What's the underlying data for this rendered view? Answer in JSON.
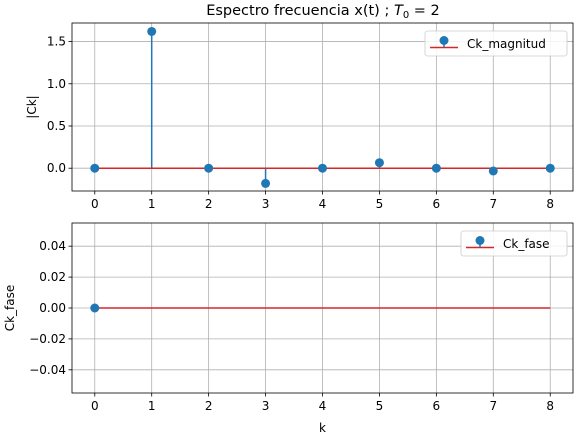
{
  "figure": {
    "title_main": "Espectro frecuencia x(t)  ; ",
    "title_math_symbol": "T",
    "title_math_sub": "0",
    "title_math_rest": " = 2"
  },
  "chart_data": [
    {
      "type": "stem",
      "title": "Espectro frecuencia x(t)  ; T0 = 2",
      "xlabel": "",
      "ylabel": "|Ck|",
      "x": [
        0,
        1,
        2,
        3,
        4,
        5,
        6,
        7,
        8
      ],
      "xticks": [
        "0",
        "1",
        "2",
        "3",
        "4",
        "5",
        "6",
        "7",
        "8"
      ],
      "xlim": [
        -0.4,
        8.4
      ],
      "ylim": [
        -0.27,
        1.72
      ],
      "yticks": [
        "0.0",
        "0.5",
        "1.0",
        "1.5"
      ],
      "ytick_values": [
        0.0,
        0.5,
        1.0,
        1.5
      ],
      "grid": true,
      "legend_position": "top-right",
      "series": [
        {
          "name": "Ck_magnitud",
          "values": [
            0.0,
            1.62,
            0.0,
            -0.18,
            0.0,
            0.065,
            0.0,
            -0.033,
            0.0
          ],
          "color": "#1f77b4",
          "baseline_color": "#d62728"
        }
      ]
    },
    {
      "type": "stem",
      "title": "",
      "xlabel": "k",
      "ylabel": "Ck_fase",
      "x": [
        0
      ],
      "xticks": [
        "0",
        "1",
        "2",
        "3",
        "4",
        "5",
        "6",
        "7",
        "8"
      ],
      "xlim": [
        -0.4,
        8.4
      ],
      "ylim": [
        -0.055,
        0.055
      ],
      "yticks": [
        "−0.04",
        "−0.02",
        "0.00",
        "0.02",
        "0.04"
      ],
      "ytick_values": [
        -0.04,
        -0.02,
        0.0,
        0.02,
        0.04
      ],
      "grid": true,
      "legend_position": "top-right",
      "baseline_x": [
        0,
        8
      ],
      "series": [
        {
          "name": "Ck_fase",
          "values": [
            0.0
          ],
          "color": "#1f77b4",
          "baseline_color": "#d62728"
        }
      ]
    }
  ]
}
